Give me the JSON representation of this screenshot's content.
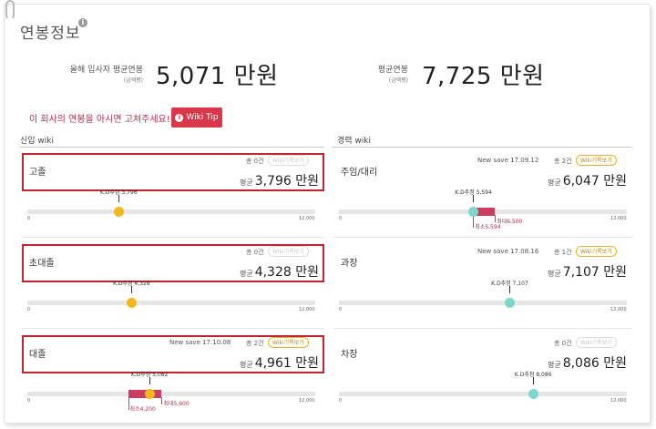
{
  "header": {
    "title": "연봉정보",
    "info_icon": "i"
  },
  "summary": {
    "newhire_label": "올해 입사자 평균연봉",
    "newhire_sub": "(금액평)",
    "newhire_value": "5,071 만원",
    "avg_label": "평균연봉",
    "avg_sub": "(금액평)",
    "avg_value": "7,725 만원"
  },
  "notice": {
    "text": "이 회사의 연봉을 아시면 고쳐주세요!",
    "wiki_tip_label": "Wiki Tip",
    "wiki_tip_icon": "i"
  },
  "left_column": {
    "title": "신입 wiki",
    "rows": [
      {
        "label": "고졸",
        "count": "총 0건",
        "wiki_button": "Wiki기록보기",
        "avg_label": "평균",
        "avg_value": "3,796 만원",
        "newsave": "",
        "marker_label": "K.D추정 3,796",
        "axis_min": "0",
        "axis_max": "12,000",
        "value": 3796,
        "min_label": "",
        "max_label": ""
      },
      {
        "label": "초대졸",
        "count": "총 0건",
        "wiki_button": "Wiki기록보기",
        "avg_label": "평균",
        "avg_value": "4,328 만원",
        "newsave": "",
        "marker_label": "K.D추정 4,328",
        "axis_min": "0",
        "axis_max": "12,000",
        "value": 4328,
        "min_label": "",
        "max_label": ""
      },
      {
        "label": "대졸",
        "count": "총 2건",
        "wiki_button": "Wiki기록보기",
        "avg_label": "평균",
        "avg_value": "4,961 만원",
        "newsave": "New save 17.10.08",
        "marker_label": "K.D추정 5,082",
        "axis_min": "0",
        "axis_max": "12,000",
        "value": 5082,
        "range_min": 4200,
        "range_max": 5600,
        "min_label": "최소4,200",
        "max_label": "최대5,600"
      }
    ]
  },
  "right_column": {
    "title": "경력 wiki",
    "rows": [
      {
        "label": "주임/대리",
        "count": "총 2건",
        "wiki_button": "Wiki기록보기",
        "avg_label": "평균",
        "avg_value": "6,047 만원",
        "newsave": "New save 17.09.12",
        "marker_label": "K.D추정 5,594",
        "axis_min": "0",
        "axis_max": "12,000",
        "value": 5594,
        "range_min": 5594,
        "range_max": 6500,
        "min_label": "최소5,594",
        "max_label": "최대6,500"
      },
      {
        "label": "과장",
        "count": "총 1건",
        "wiki_button": "Wiki기록보기",
        "avg_label": "평균",
        "avg_value": "7,107 만원",
        "newsave": "New save 17.08.16",
        "marker_label": "K.D추정 7,107",
        "axis_min": "0",
        "axis_max": "12,000",
        "value": 7107,
        "min_label": "",
        "max_label": ""
      },
      {
        "label": "차장",
        "count": "총 0건",
        "wiki_button": "Wiki기록보기",
        "avg_label": "평균",
        "avg_value": "8,086 만원",
        "newsave": "",
        "marker_label": "K.D추정 8,086",
        "axis_min": "0",
        "axis_max": "12,000",
        "value": 8086,
        "min_label": "",
        "max_label": ""
      }
    ]
  },
  "colors": {
    "accent_red": "#c0262e",
    "range_pink": "#cc3d62",
    "dot_yellow": "#f3b81d",
    "dot_teal": "#7fd6cc",
    "wiki_gold": "#e2b227"
  }
}
